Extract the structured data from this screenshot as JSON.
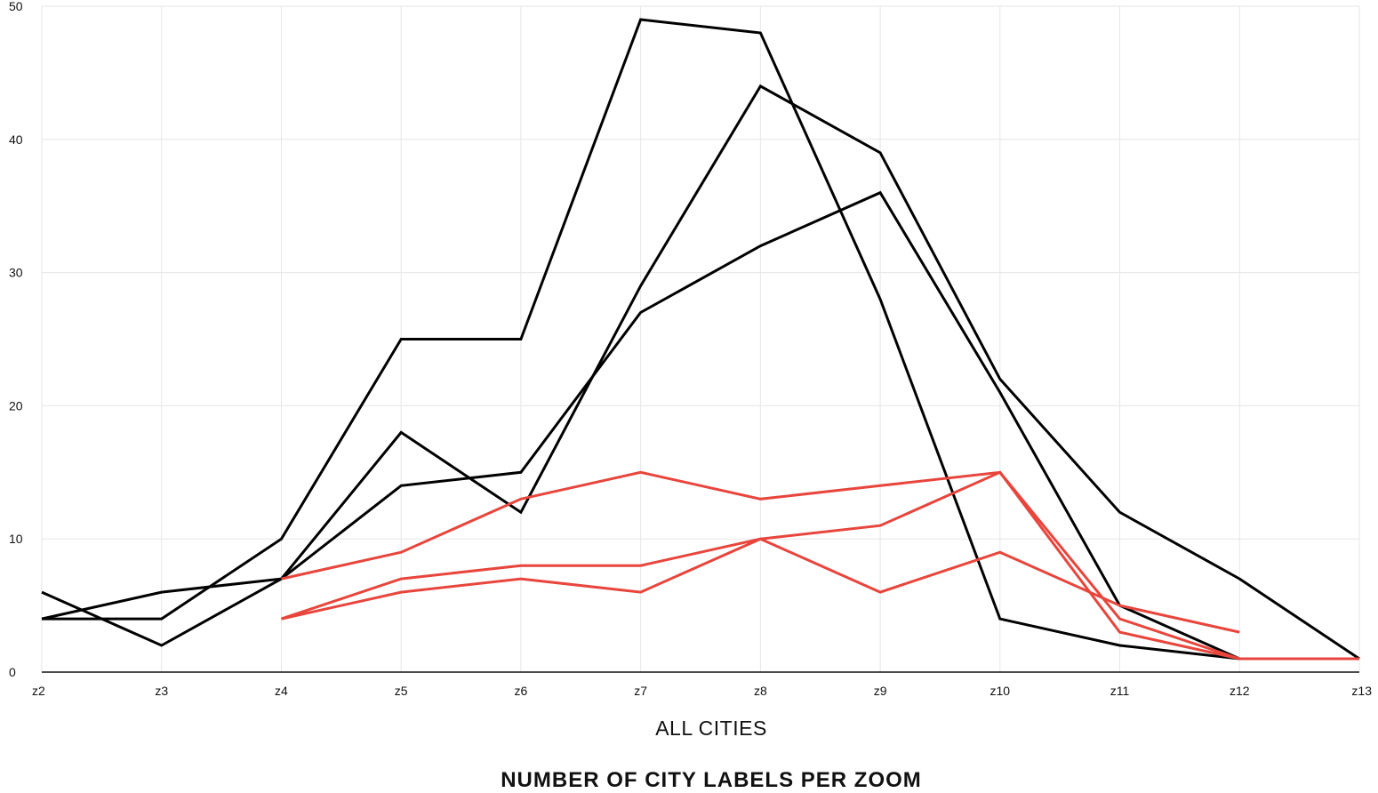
{
  "chart_data": {
    "type": "line",
    "title": "NUMBER OF CITY LABELS PER ZOOM",
    "xlabel": "ALL CITIES",
    "ylabel": "",
    "categories": [
      "z2",
      "z3",
      "z4",
      "z5",
      "z6",
      "z7",
      "z8",
      "z9",
      "z10",
      "z11",
      "z12",
      "z13"
    ],
    "ylim": [
      0,
      50
    ],
    "yticks": [
      0,
      10,
      20,
      30,
      40,
      50
    ],
    "grid": true,
    "series": [
      {
        "color": "#000000",
        "values": [
          4,
          4,
          10,
          25,
          25,
          49,
          48,
          28,
          4,
          2,
          1,
          1
        ]
      },
      {
        "color": "#000000",
        "values": [
          6,
          2,
          7,
          14,
          15,
          27,
          32,
          36,
          21,
          5,
          1,
          1
        ]
      },
      {
        "color": "#000000",
        "values": [
          4,
          6,
          7,
          18,
          12,
          29,
          44,
          39,
          22,
          12,
          7,
          1
        ]
      },
      {
        "color": "#e8453c",
        "values": [
          null,
          null,
          7,
          9,
          13,
          15,
          13,
          14,
          15,
          3,
          1,
          1
        ]
      },
      {
        "color": "#e8453c",
        "values": [
          null,
          null,
          4,
          6,
          7,
          6,
          10,
          11,
          15,
          4,
          1,
          1
        ]
      },
      {
        "color": "#e8453c",
        "values": [
          null,
          null,
          4,
          7,
          8,
          8,
          10,
          6,
          9,
          5,
          3,
          null
        ]
      }
    ]
  }
}
